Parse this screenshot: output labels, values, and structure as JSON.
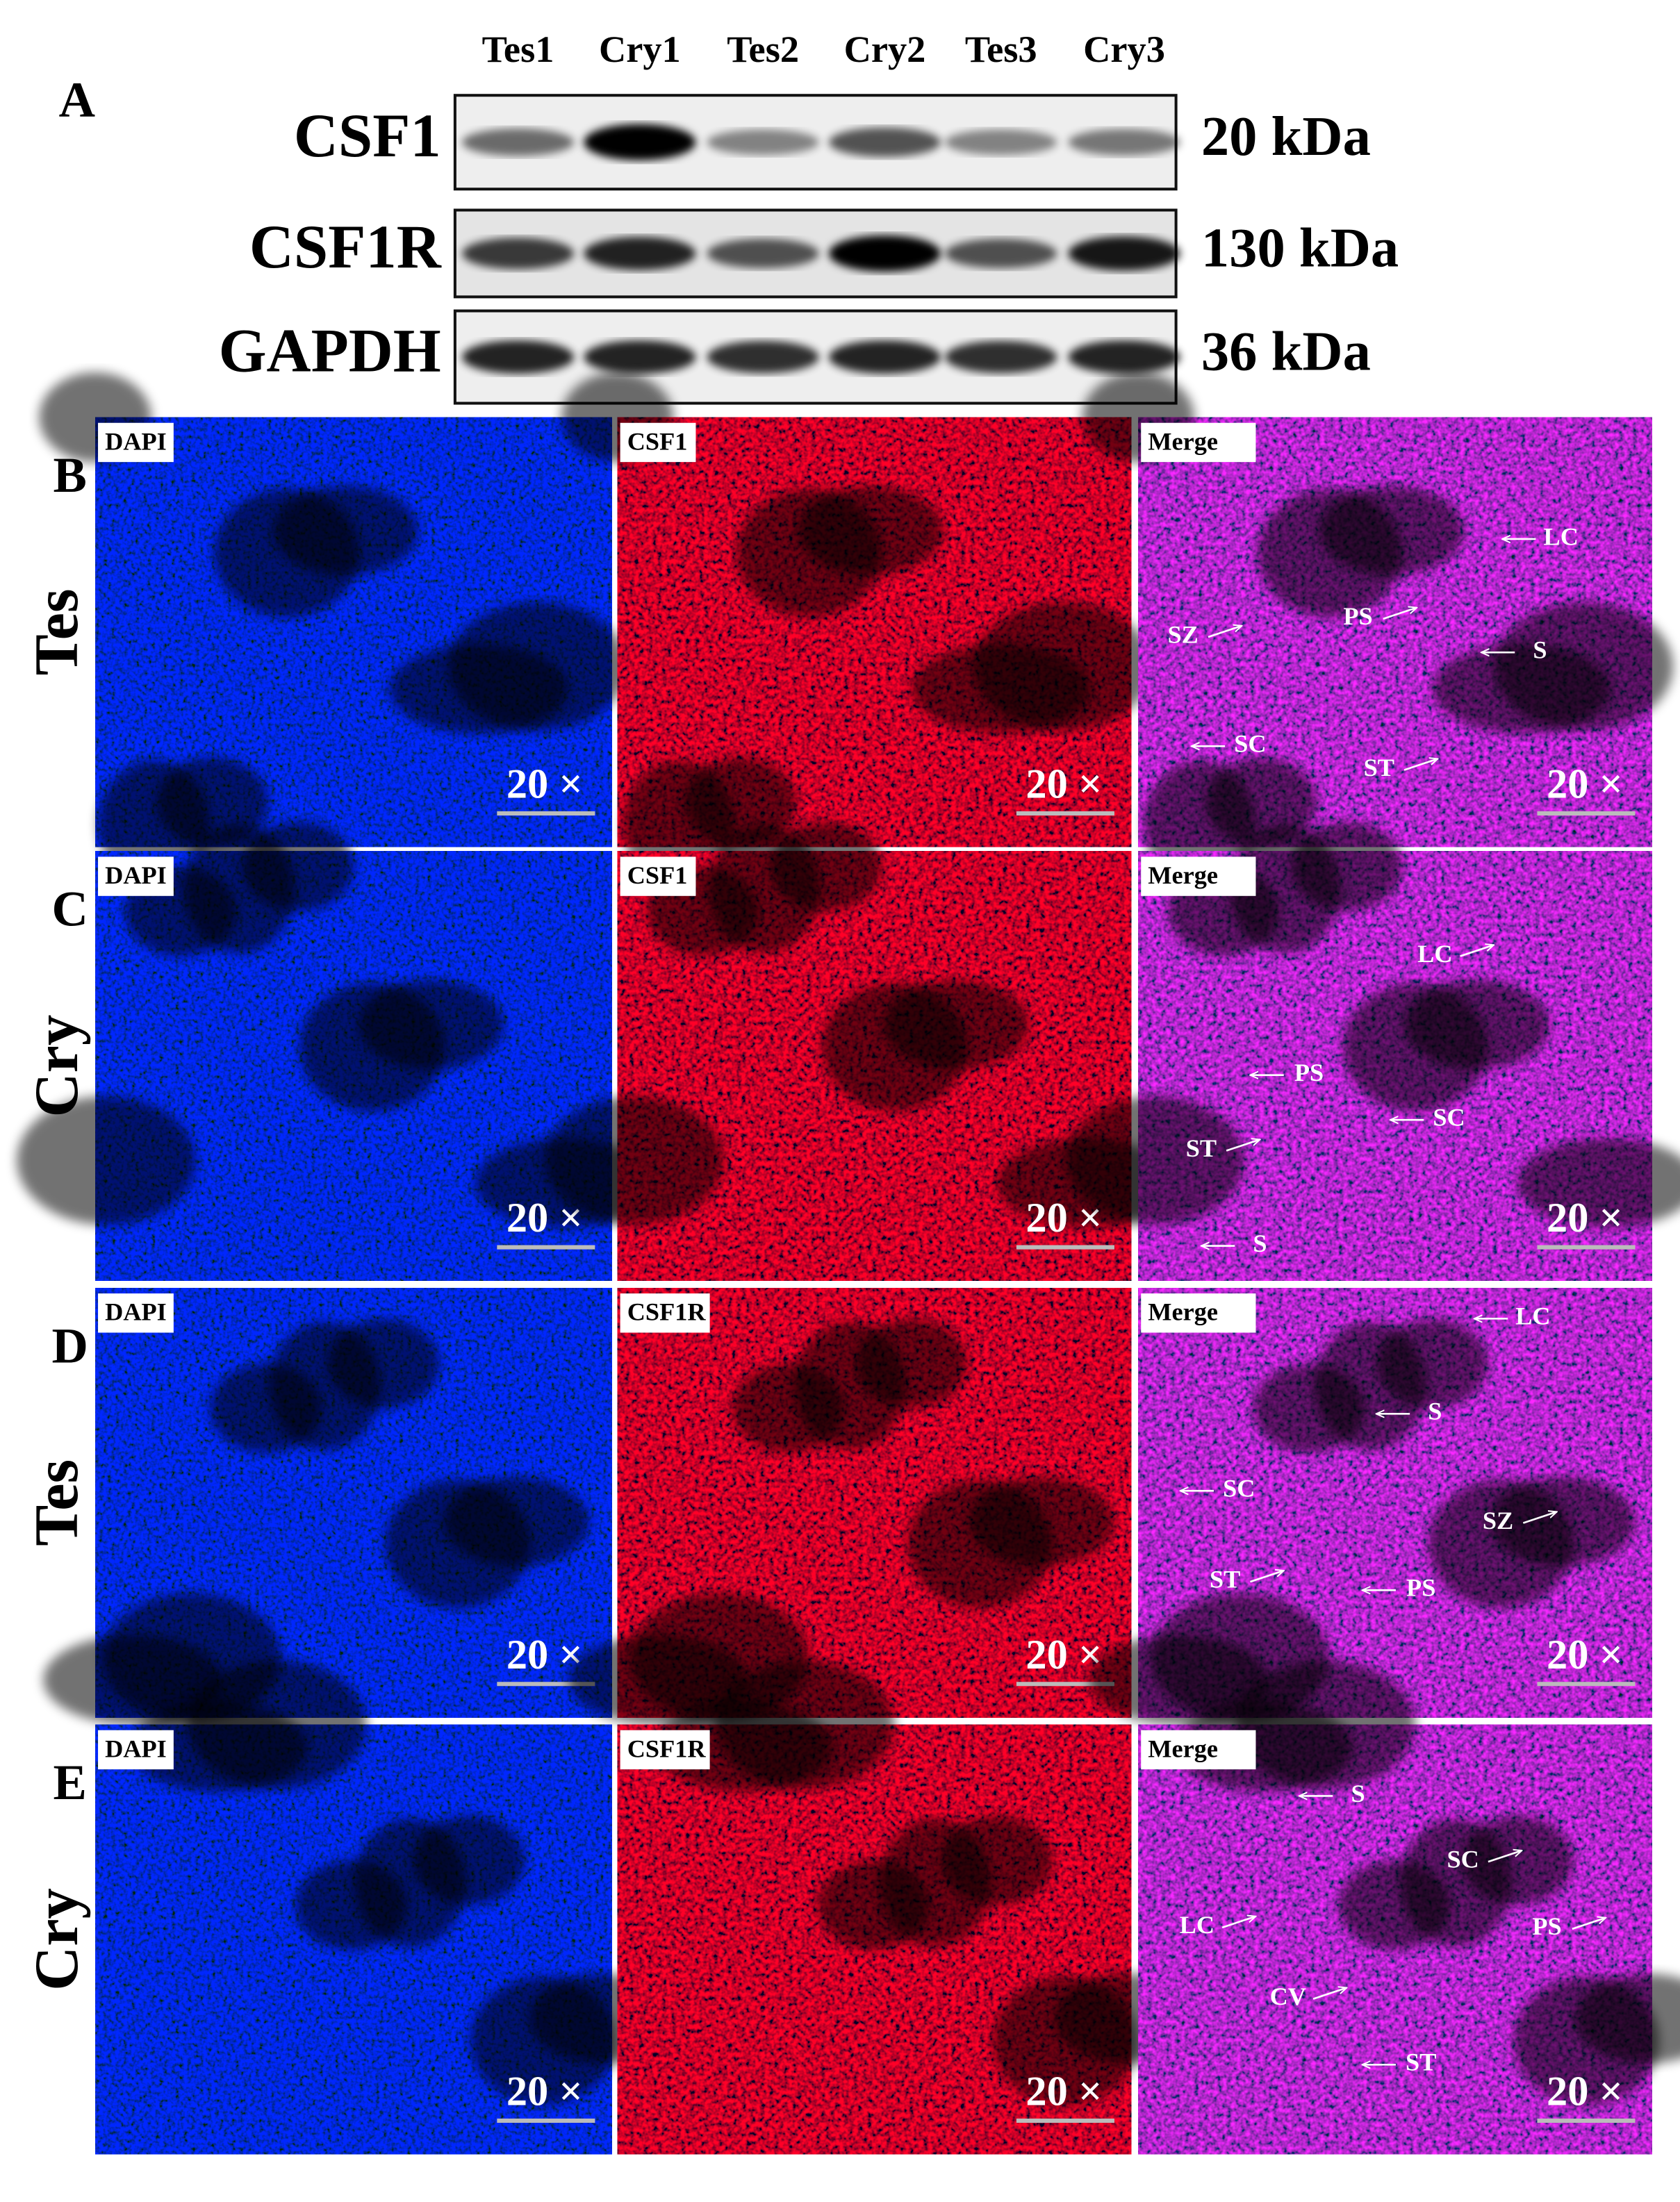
{
  "panel_a": {
    "label": "A",
    "lanes": [
      "Tes1",
      "Cry1",
      "Tes2",
      "Cry2",
      "Tes3",
      "Cry3"
    ],
    "blots": [
      {
        "protein": "CSF1",
        "size": "20 kDa"
      },
      {
        "protein": "CSF1R",
        "size": "130 kDa"
      },
      {
        "protein": "GAPDH",
        "size": "36 kDa"
      }
    ]
  },
  "panels": [
    {
      "label": "B",
      "group": "Tes",
      "images": [
        {
          "tag": "DAPI",
          "scale": "20 ×"
        },
        {
          "tag": "CSF1",
          "scale": "20 ×"
        },
        {
          "tag": "Merge",
          "scale": "20 ×",
          "annotations": [
            "LC",
            "SZ",
            "PS",
            "S",
            "SC",
            "ST"
          ]
        }
      ]
    },
    {
      "label": "C",
      "group": "Cry",
      "images": [
        {
          "tag": "DAPI",
          "scale": "20 ×"
        },
        {
          "tag": "CSF1",
          "scale": "20 ×"
        },
        {
          "tag": "Merge",
          "scale": "20 ×",
          "annotations": [
            "LC",
            "PS",
            "SC",
            "ST",
            "S"
          ]
        }
      ]
    },
    {
      "label": "D",
      "group": "Tes",
      "images": [
        {
          "tag": "DAPI",
          "scale": "20 ×"
        },
        {
          "tag": "CSF1R",
          "scale": "20 ×"
        },
        {
          "tag": "Merge",
          "scale": "20 ×",
          "annotations": [
            "LC",
            "S",
            "SC",
            "SZ",
            "ST",
            "PS"
          ]
        }
      ]
    },
    {
      "label": "E",
      "group": "Cry",
      "images": [
        {
          "tag": "DAPI",
          "scale": "20 ×"
        },
        {
          "tag": "CSF1R",
          "scale": "20 ×"
        },
        {
          "tag": "Merge",
          "scale": "20 ×",
          "annotations": [
            "S",
            "SC",
            "LC",
            "PS",
            "CV",
            "ST"
          ]
        }
      ]
    }
  ]
}
